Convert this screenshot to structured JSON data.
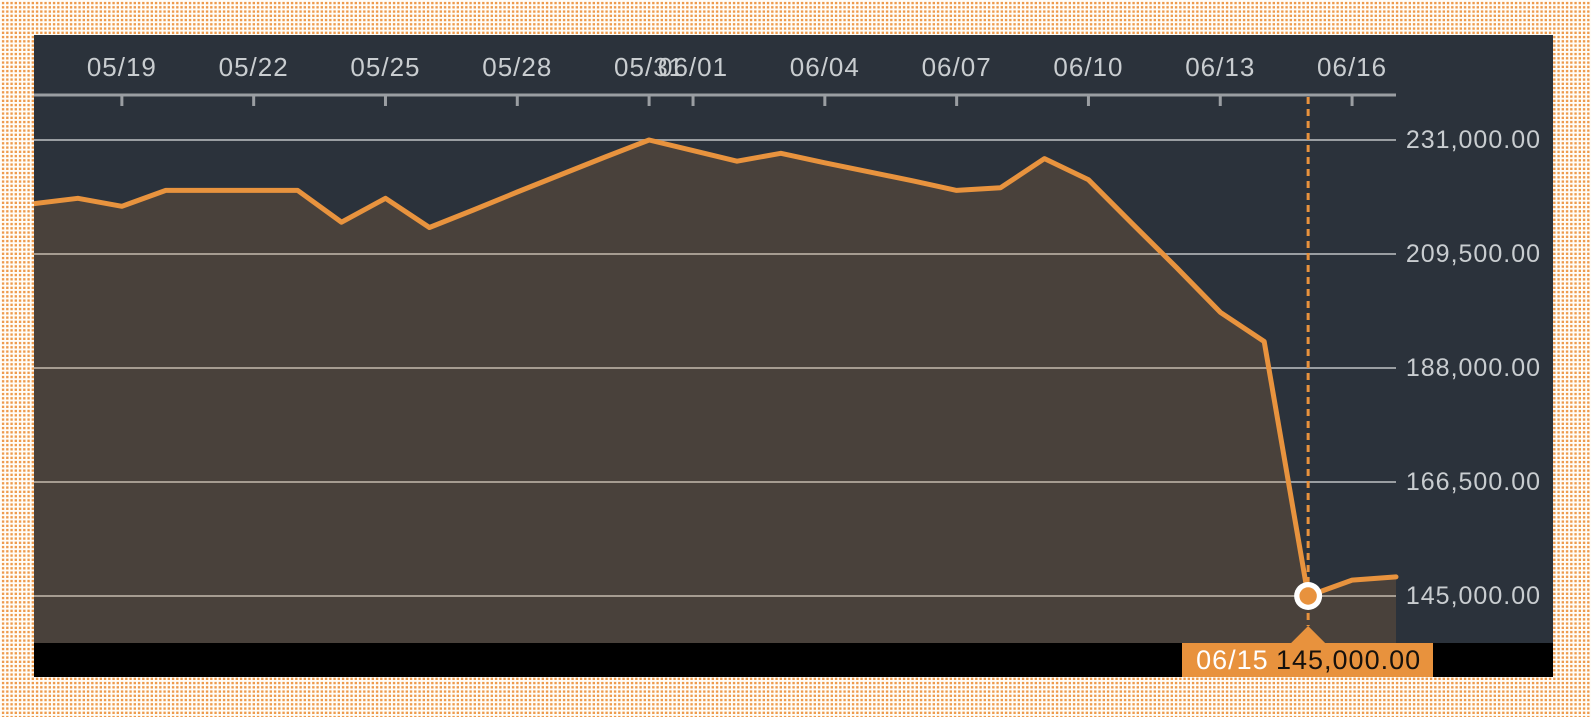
{
  "colors": {
    "page_dot": "#ee9b4d",
    "page_base": "#fffdf8",
    "panel_bg": "#2b323b",
    "grid": "#9a9ea2",
    "axis_label": "#c9cdd0",
    "line": "#e8933e",
    "tooltip_bg": "#e8923d",
    "tooltip_date_text": "#ffffff",
    "tooltip_value_text": "#16110d",
    "bottom_bar": "#000000",
    "marker_ring": "#ffffff"
  },
  "chart_data": {
    "type": "area",
    "x": [
      "05/17",
      "05/18",
      "05/19",
      "05/20",
      "05/21",
      "05/22",
      "05/23",
      "05/24",
      "05/25",
      "05/26",
      "05/27",
      "05/28",
      "05/29",
      "05/30",
      "05/31",
      "06/01",
      "06/02",
      "06/03",
      "06/04",
      "06/05",
      "06/06",
      "06/07",
      "06/08",
      "06/09",
      "06/10",
      "06/11",
      "06/12",
      "06/13",
      "06/14",
      "06/15",
      "06/16",
      "06/17"
    ],
    "values": [
      219000,
      220000,
      218500,
      221500,
      221500,
      221500,
      221500,
      215500,
      220000,
      214500,
      217800,
      221200,
      224500,
      227800,
      231000,
      229000,
      227000,
      228500,
      226700,
      225000,
      223300,
      221500,
      222000,
      227500,
      223500,
      215200,
      207000,
      198500,
      193000,
      145000,
      148000,
      148600
    ],
    "x_tick_labels": [
      "05/19",
      "05/22",
      "05/25",
      "05/28",
      "05/31",
      "06/01",
      "06/04",
      "06/07",
      "06/10",
      "06/13",
      "06/16"
    ],
    "y_tick_labels": [
      "231,000.00",
      "209,500.00",
      "188,000.00",
      "166,500.00",
      "145,000.00"
    ],
    "y_tick_values": [
      231000,
      209500,
      188000,
      166500,
      145000
    ],
    "ylim": [
      145000,
      231000
    ],
    "grid": "on",
    "legend_position": "none",
    "title": "",
    "xlabel": "",
    "ylabel": "",
    "highlight": {
      "x_label": "06/15",
      "value": 145000,
      "value_label": "145,000.00"
    }
  }
}
